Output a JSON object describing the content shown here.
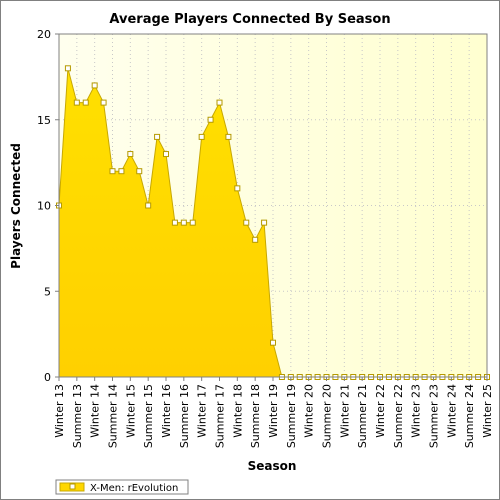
{
  "chart_data": {
    "type": "area",
    "title": "Average Players Connected By Season",
    "xlabel": "Season",
    "ylabel": "Players Connected",
    "ylim": [
      0,
      20
    ],
    "yticks": [
      0,
      5,
      10,
      15,
      20
    ],
    "grid": true,
    "legend_position": "bottom-left",
    "categories": [
      "Winter 13",
      "Summer 13",
      "Winter 14",
      "Summer 14",
      "Winter 15",
      "Summer 15",
      "Winter 16",
      "Summer 16",
      "Winter 17",
      "Summer 17",
      "Winter 18",
      "Summer 18",
      "Winter 19",
      "Summer 19",
      "Winter 20",
      "Summer 20",
      "Winter 21",
      "Summer 21",
      "Winter 22",
      "Summer 22",
      "Winter 23",
      "Summer 23",
      "Winter 24",
      "Summer 24",
      "Winter 25"
    ],
    "x": [
      0,
      0.5,
      1,
      1.5,
      2,
      2.5,
      3,
      3.5,
      4,
      4.5,
      5,
      5.5,
      6,
      6.5,
      7,
      7.5,
      8,
      8.5,
      9,
      9.5,
      10,
      10.5,
      11,
      11.5,
      12,
      12.5,
      13,
      13.5,
      14,
      14.5,
      15,
      15.5,
      16,
      16.5,
      17,
      17.5,
      18,
      18.5,
      19,
      19.5,
      20,
      20.5,
      21,
      21.5,
      22,
      22.5,
      23,
      23.5,
      24
    ],
    "series": [
      {
        "name": "X-Men: rEvolution",
        "values": [
          10,
          18,
          16,
          16,
          17,
          16,
          12,
          12,
          13,
          12,
          10,
          14,
          13,
          9,
          9,
          9,
          14,
          15,
          16,
          14,
          11,
          9,
          8,
          9,
          2,
          0,
          0,
          0,
          0,
          0,
          0,
          0,
          0,
          0,
          0,
          0,
          0,
          0,
          0,
          0,
          0,
          0,
          0,
          0,
          0,
          0,
          0,
          0,
          0
        ]
      }
    ],
    "colors": {
      "fill": "#ffd700",
      "line": "#c8a800",
      "marker_fill": "#ffffff",
      "marker_stroke": "#b59a00",
      "plot_bg_left": "#ffffee",
      "plot_bg_right": "#ffffd0",
      "grid": "#c8c8c8"
    }
  }
}
